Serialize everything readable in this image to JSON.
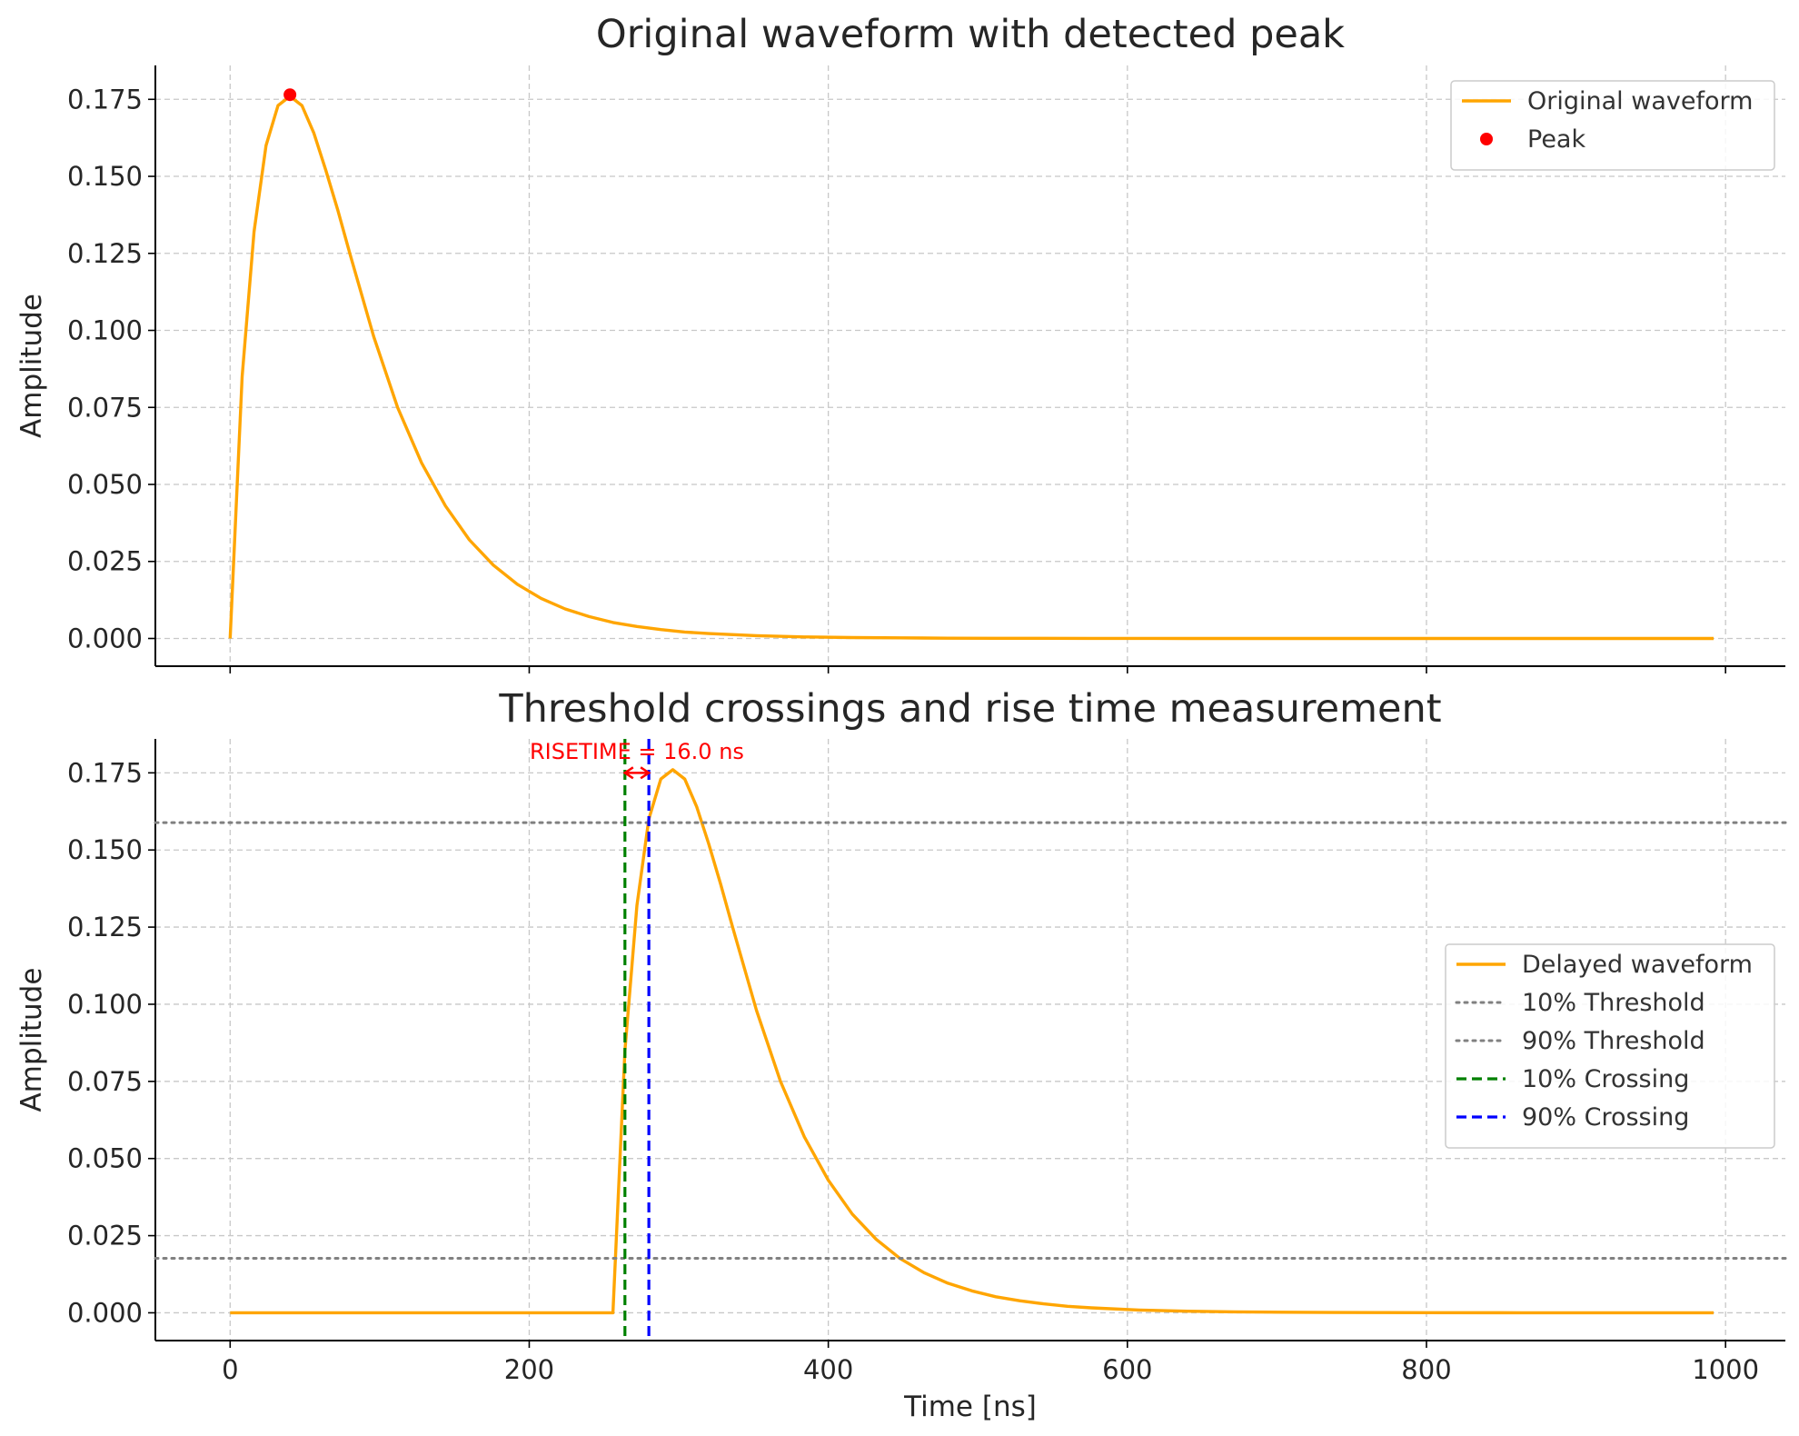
{
  "chart_data": [
    {
      "type": "line",
      "title": "Original waveform with detected peak",
      "xlabel": "",
      "ylabel": "Amplitude",
      "xlim": [
        -50,
        1040
      ],
      "ylim": [
        -0.009,
        0.186
      ],
      "xticks": [
        0,
        200,
        400,
        600,
        800,
        1000
      ],
      "yticks": [
        0.0,
        0.025,
        0.05,
        0.075,
        0.1,
        0.125,
        0.15,
        0.175
      ],
      "ytick_labels": [
        "0.000",
        "0.025",
        "0.050",
        "0.075",
        "0.100",
        "0.125",
        "0.150",
        "0.175"
      ],
      "grid": true,
      "legend_position": "top-right",
      "series": [
        {
          "name": "Original waveform",
          "kind": "line",
          "color": "#FFA500",
          "x": [
            0,
            8,
            16,
            24,
            32,
            40,
            48,
            56,
            64,
            72,
            80,
            96,
            112,
            128,
            144,
            160,
            176,
            192,
            208,
            224,
            240,
            256,
            272,
            288,
            304,
            320,
            352,
            384,
            416,
            448,
            480,
            512,
            576,
            640,
            704,
            768,
            832,
            896,
            960,
            992
          ],
          "y": [
            0.0,
            0.085,
            0.132,
            0.16,
            0.173,
            0.176,
            0.173,
            0.164,
            0.152,
            0.139,
            0.125,
            0.098,
            0.075,
            0.057,
            0.043,
            0.032,
            0.0238,
            0.0176,
            0.013,
            0.0096,
            0.0071,
            0.0052,
            0.0039,
            0.0029,
            0.0021,
            0.0016,
            0.0009,
            0.0005,
            0.0003,
            0.0002,
            0.0001,
            6e-05,
            2e-05,
            0.0,
            0.0,
            0.0,
            0.0,
            0.0,
            0.0,
            0.0
          ]
        },
        {
          "name": "Peak",
          "kind": "scatter",
          "color": "#FF0000",
          "x": [
            40
          ],
          "y": [
            0.1765
          ]
        }
      ]
    },
    {
      "type": "line",
      "title": "Threshold crossings and rise time measurement",
      "xlabel": "Time [ns]",
      "ylabel": "Amplitude",
      "xlim": [
        -50,
        1040
      ],
      "ylim": [
        -0.009,
        0.186
      ],
      "xticks": [
        0,
        200,
        400,
        600,
        800,
        1000
      ],
      "xtick_labels": [
        "0",
        "200",
        "400",
        "600",
        "800",
        "1000"
      ],
      "yticks": [
        0.0,
        0.025,
        0.05,
        0.075,
        0.1,
        0.125,
        0.15,
        0.175
      ],
      "ytick_labels": [
        "0.000",
        "0.025",
        "0.050",
        "0.075",
        "0.100",
        "0.125",
        "0.150",
        "0.175"
      ],
      "grid": true,
      "legend_position": "center-right",
      "annotation": {
        "text": "RISETIME = 16.0 ns",
        "x": 272,
        "y": 0.1795,
        "color": "#FF0000",
        "arrow_from": 264,
        "arrow_to": 280,
        "arrow_y": 0.175
      },
      "series": [
        {
          "name": "Delayed waveform",
          "kind": "line",
          "color": "#FFA500",
          "x": [
            0,
            248,
            256,
            264,
            272,
            280,
            288,
            296,
            304,
            312,
            320,
            328,
            336,
            352,
            368,
            384,
            400,
            416,
            432,
            448,
            464,
            480,
            496,
            512,
            528,
            544,
            560,
            576,
            608,
            640,
            672,
            704,
            736,
            768,
            800,
            864,
            928,
            992
          ],
          "y": [
            0.0,
            0.0,
            0.0,
            0.085,
            0.132,
            0.16,
            0.173,
            0.176,
            0.173,
            0.164,
            0.152,
            0.139,
            0.125,
            0.098,
            0.075,
            0.057,
            0.043,
            0.032,
            0.0238,
            0.0176,
            0.013,
            0.0096,
            0.0071,
            0.0052,
            0.0039,
            0.0029,
            0.0021,
            0.0016,
            0.0009,
            0.0005,
            0.0003,
            0.0002,
            0.0001,
            6e-05,
            3e-05,
            1e-05,
            0.0,
            0.0
          ]
        },
        {
          "name": "10% Threshold",
          "kind": "hline",
          "style": "dotted",
          "color": "#808080",
          "y": 0.01765
        },
        {
          "name": "90% Threshold",
          "kind": "hline",
          "style": "dotted",
          "color": "#808080",
          "y": 0.15885
        },
        {
          "name": "10% Crossing",
          "kind": "vline",
          "style": "dashed",
          "color": "#008000",
          "x": 264
        },
        {
          "name": "90% Crossing",
          "kind": "vline",
          "style": "dashed",
          "color": "#0000FF",
          "x": 280
        }
      ]
    }
  ]
}
